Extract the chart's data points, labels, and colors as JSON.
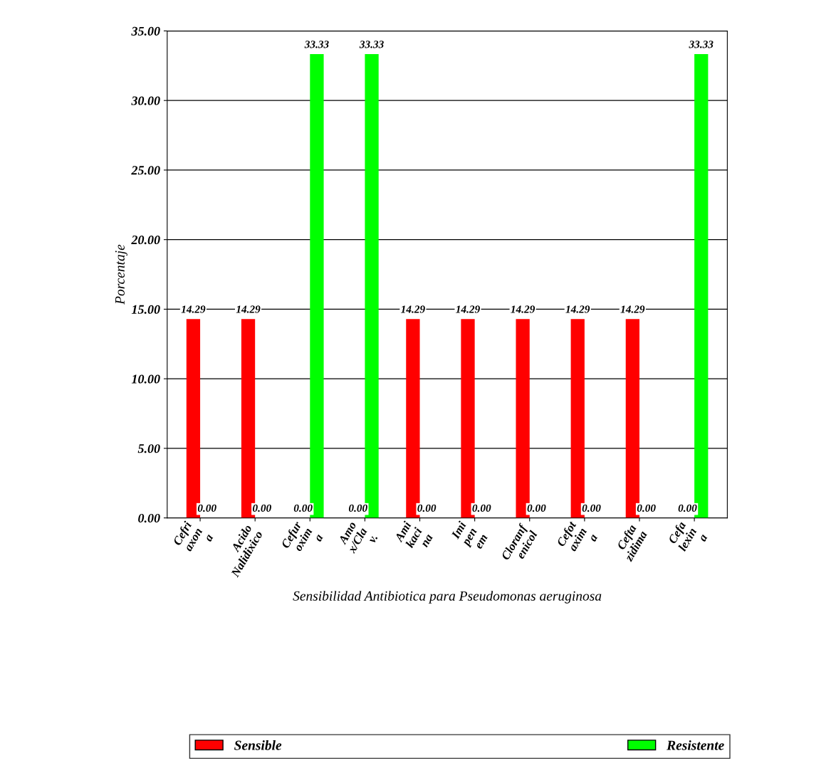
{
  "chart_data": {
    "type": "bar",
    "xlabel": "Sensibilidad Antibiotica para Pseudomonas aeruginosa",
    "ylabel": "Porcentaje",
    "categories": [
      "Cefri\naxon\na",
      "Acido\nNalidixico",
      "Cefur\noxim\na",
      "Amo\nx/Cla\nv.",
      "Ami\nkaci\nna",
      "Imi\npen\nem",
      "Cloranf\nenicol",
      "Cefot\naxim\na",
      "Cefta\nzidima",
      "Cefa\nlexin\na"
    ],
    "series": [
      {
        "name": "Sensible",
        "color": "#ff0000",
        "values": [
          14.29,
          14.29,
          0,
          0,
          14.29,
          14.29,
          14.29,
          14.29,
          14.29,
          0
        ],
        "value_labels": [
          "14.29",
          "14.29",
          "0.00",
          "0.00",
          "14.29",
          "14.29",
          "14.29",
          "14.29",
          "14.29",
          "0.00"
        ]
      },
      {
        "name": "Resistente",
        "color": "#00ff00",
        "values": [
          0,
          0,
          33.33,
          33.33,
          0,
          0,
          0,
          0,
          0,
          33.33
        ],
        "value_labels": [
          "0.00",
          "0.00",
          "33.33",
          "33.33",
          "0.00",
          "0.00",
          "0.00",
          "0.00",
          "0.00",
          "33.33"
        ]
      }
    ],
    "ylim": [
      0,
      35
    ],
    "yticks": [
      {
        "value": 0,
        "label": "0.00"
      },
      {
        "value": 5,
        "label": "5.00"
      },
      {
        "value": 10,
        "label": "10.00"
      },
      {
        "value": 15,
        "label": "15.00"
      },
      {
        "value": 20,
        "label": "20.00"
      },
      {
        "value": 25,
        "label": "25.00"
      },
      {
        "value": 30,
        "label": "30.00"
      },
      {
        "value": 35,
        "label": "35.00"
      }
    ],
    "grid": "y",
    "legend": "bottom"
  }
}
